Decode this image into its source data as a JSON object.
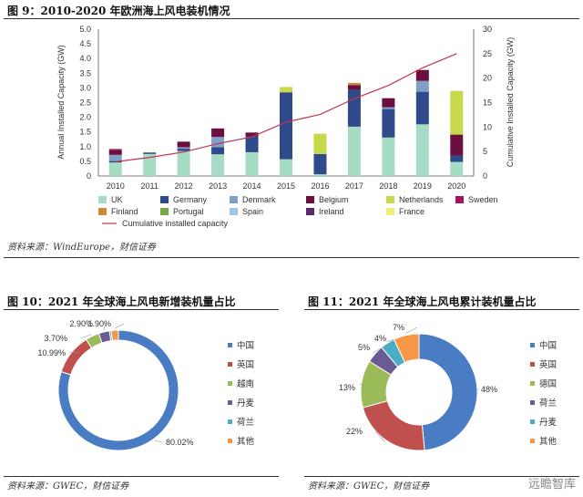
{
  "figure9": {
    "title": "图 9：2010-2020 年欧洲海上风电装机情况",
    "source": "资料来源：WindEurope，财信证券"
  },
  "figure10": {
    "title": "图 10：2021 年全球海上风电新增装机量占比",
    "source": "资料来源：GWEC，财信证券"
  },
  "figure11": {
    "title": "图 11：2021 年全球海上风电累计装机量占比",
    "source": "资料来源：GWEC，财信证券"
  },
  "watermark": "远瞻智库",
  "colors": {
    "UK": "#a6dcc4",
    "Germany": "#2e4a8b",
    "Denmark": "#7fa0c8",
    "Belgium": "#6b0f3f",
    "Netherlands": "#c7d94a",
    "Sweden": "#a4145a",
    "Finland": "#d08a3a",
    "Portugal": "#78a640",
    "Spain": "#9fc6e6",
    "Ireland": "#5a2a6b",
    "France": "#eef07a",
    "cumulative": "#c0354f",
    "pie1": "#4a7cc4",
    "pie2": "#c0504d",
    "pie3": "#9bbb59",
    "pie4": "#6b5b95",
    "pie5": "#4bacc6",
    "pie6": "#f79646"
  },
  "chart_data": [
    {
      "type": "bar",
      "stacked": true,
      "categories": [
        "2010",
        "2011",
        "2012",
        "2013",
        "2014",
        "2015",
        "2016",
        "2017",
        "2018",
        "2019",
        "2020"
      ],
      "ylabel": "Annual Installed Capacity (GW)",
      "y2label": "Cumulative Installed Capacity (GW)",
      "ylim": [
        0,
        5.0
      ],
      "yticks": [
        "0",
        "0.5",
        "1.0",
        "1.5",
        "2.0",
        "2.5",
        "3.0",
        "3.5",
        "4.0",
        "4.5",
        "5.0"
      ],
      "y2lim": [
        0,
        30
      ],
      "y2ticks": [
        "0",
        "5",
        "10",
        "15",
        "20",
        "25",
        "30"
      ],
      "series": [
        {
          "name": "UK",
          "values": [
            0.46,
            0.75,
            0.85,
            0.74,
            0.81,
            0.57,
            0.06,
            1.68,
            1.31,
            1.76,
            0.48
          ]
        },
        {
          "name": "Germany",
          "values": [
            0.05,
            0.05,
            0.08,
            0.24,
            0.53,
            2.28,
            0.69,
            1.25,
            0.97,
            1.11,
            0.22
          ]
        },
        {
          "name": "Denmark",
          "values": [
            0.21,
            0.0,
            0.05,
            0.35,
            0.0,
            0.0,
            0.0,
            0.0,
            0.06,
            0.37,
            0.0
          ]
        },
        {
          "name": "Belgium",
          "values": [
            0.17,
            0.0,
            0.19,
            0.29,
            0.14,
            0.0,
            0.0,
            0.17,
            0.31,
            0.37,
            0.71
          ]
        },
        {
          "name": "Netherlands",
          "values": [
            0.0,
            0.0,
            0.0,
            0.0,
            0.0,
            0.18,
            0.69,
            0.0,
            0.0,
            0.0,
            1.49
          ]
        },
        {
          "name": "Sweden",
          "values": [
            0.03,
            0.0,
            0.0,
            0.0,
            0.0,
            0.0,
            0.0,
            0.0,
            0.0,
            0.0,
            0.0
          ]
        },
        {
          "name": "Finland",
          "values": [
            0.0,
            0.0,
            0.0,
            0.0,
            0.0,
            0.0,
            0.0,
            0.07,
            0.0,
            0.0,
            0.0
          ]
        },
        {
          "name": "Portugal",
          "values": [
            0.0,
            0.0,
            0.0,
            0.0,
            0.0,
            0.0,
            0.0,
            0.0,
            0.0,
            0.0,
            0.0
          ]
        },
        {
          "name": "Spain",
          "values": [
            0.0,
            0.0,
            0.0,
            0.0,
            0.0,
            0.0,
            0.0,
            0.0,
            0.0,
            0.0,
            0.0
          ]
        },
        {
          "name": "Ireland",
          "values": [
            0.0,
            0.0,
            0.0,
            0.0,
            0.0,
            0.0,
            0.0,
            0.0,
            0.0,
            0.0,
            0.0
          ]
        },
        {
          "name": "France",
          "values": [
            0.0,
            0.0,
            0.0,
            0.0,
            0.0,
            0.0,
            0.0,
            0.0,
            0.0,
            0.0,
            0.0
          ]
        }
      ],
      "line": {
        "name": "Cumulative installed capacity",
        "axis": "y2",
        "values": [
          2.9,
          3.8,
          4.9,
          6.6,
          8.0,
          11.0,
          12.6,
          15.8,
          18.5,
          22.1,
          25.0
        ]
      },
      "legend": [
        "UK",
        "Germany",
        "Denmark",
        "Belgium",
        "Netherlands",
        "Sweden",
        "Finland",
        "Portugal",
        "Spain",
        "Ireland",
        "France",
        "Cumulative installed capacity"
      ],
      "legend_position": "bottom"
    },
    {
      "type": "pie",
      "donut": true,
      "labels": [
        "中国",
        "英国",
        "越南",
        "丹麦",
        "荷兰",
        "其他"
      ],
      "values": [
        80.02,
        10.99,
        3.7,
        2.9,
        0.5,
        1.9
      ],
      "data_labels": [
        "80.02%",
        "10.99%",
        "3.70%",
        "2.90%",
        "",
        "1.90%"
      ],
      "legend_position": "right"
    },
    {
      "type": "pie",
      "donut": true,
      "labels": [
        "中国",
        "英国",
        "德国",
        "荷兰",
        "丹麦",
        "其他"
      ],
      "values": [
        48,
        22,
        13,
        5,
        4,
        7
      ],
      "data_labels": [
        "48%",
        "22%",
        "13%",
        "5%",
        "4%",
        "7%"
      ],
      "legend_position": "right"
    }
  ]
}
